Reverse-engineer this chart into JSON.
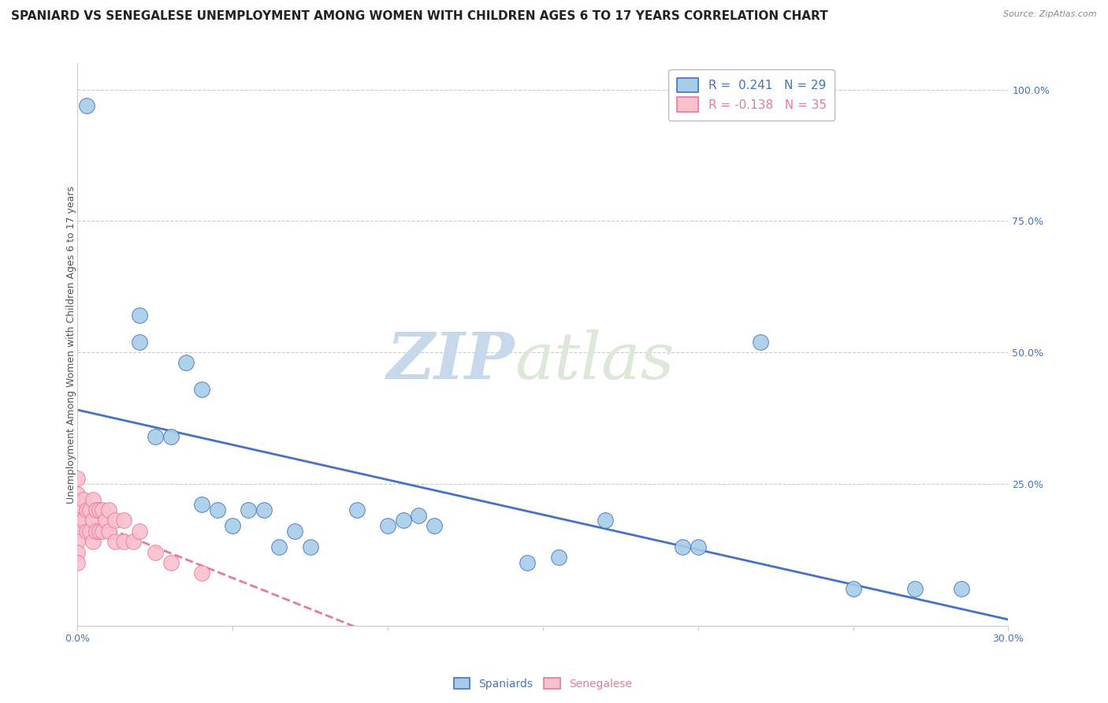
{
  "title": "SPANIARD VS SENEGALESE UNEMPLOYMENT AMONG WOMEN WITH CHILDREN AGES 6 TO 17 YEARS CORRELATION CHART",
  "source": "Source: ZipAtlas.com",
  "ylabel": "Unemployment Among Women with Children Ages 6 to 17 years",
  "xlim": [
    0.0,
    0.3
  ],
  "ylim": [
    -0.02,
    1.05
  ],
  "xticks": [
    0.0,
    0.05,
    0.1,
    0.15,
    0.2,
    0.25,
    0.3
  ],
  "xtick_labels": [
    "0.0%",
    "",
    "",
    "",
    "",
    "",
    "30.0%"
  ],
  "ytick_positions": [
    0.0,
    0.25,
    0.5,
    0.75,
    1.0
  ],
  "ytick_labels": [
    "",
    "25.0%",
    "50.0%",
    "75.0%",
    "100.0%"
  ],
  "spaniards_color": "#a8cce8",
  "senegalese_color": "#f9c0ce",
  "spaniards_line_color": "#4472c4",
  "senegalese_line_color": "#e8799a",
  "legend_R_spaniards": "R =  0.241",
  "legend_N_spaniards": "N = 29",
  "legend_R_senegalese": "R = -0.138",
  "legend_N_senegalese": "N = 35",
  "watermark_zip": "ZIP",
  "watermark_atlas": "atlas",
  "spaniards_x": [
    0.003,
    0.02,
    0.02,
    0.025,
    0.03,
    0.035,
    0.04,
    0.04,
    0.045,
    0.05,
    0.055,
    0.06,
    0.065,
    0.07,
    0.075,
    0.09,
    0.1,
    0.105,
    0.11,
    0.115,
    0.145,
    0.155,
    0.17,
    0.195,
    0.2,
    0.22,
    0.25,
    0.27,
    0.285
  ],
  "spaniards_y": [
    0.97,
    0.57,
    0.52,
    0.34,
    0.34,
    0.48,
    0.43,
    0.21,
    0.2,
    0.17,
    0.2,
    0.2,
    0.13,
    0.16,
    0.13,
    0.2,
    0.17,
    0.18,
    0.19,
    0.17,
    0.1,
    0.11,
    0.18,
    0.13,
    0.13,
    0.52,
    0.05,
    0.05,
    0.05
  ],
  "senegalese_x": [
    0.0,
    0.0,
    0.0,
    0.0,
    0.0,
    0.0,
    0.0,
    0.0,
    0.002,
    0.002,
    0.003,
    0.003,
    0.004,
    0.004,
    0.005,
    0.005,
    0.005,
    0.006,
    0.006,
    0.007,
    0.007,
    0.008,
    0.008,
    0.009,
    0.01,
    0.01,
    0.012,
    0.012,
    0.015,
    0.015,
    0.018,
    0.02,
    0.025,
    0.03,
    0.04
  ],
  "senegalese_y": [
    0.26,
    0.23,
    0.2,
    0.18,
    0.16,
    0.14,
    0.12,
    0.1,
    0.22,
    0.18,
    0.2,
    0.16,
    0.2,
    0.16,
    0.22,
    0.18,
    0.14,
    0.2,
    0.16,
    0.2,
    0.16,
    0.2,
    0.16,
    0.18,
    0.2,
    0.16,
    0.18,
    0.14,
    0.18,
    0.14,
    0.14,
    0.16,
    0.12,
    0.1,
    0.08
  ],
  "title_fontsize": 11,
  "axis_label_fontsize": 9,
  "tick_fontsize": 9,
  "background_color": "#ffffff",
  "grid_color": "#cccccc",
  "title_color": "#222222",
  "axis_label_color": "#555555",
  "tick_color": "#4472c4",
  "watermark_color": "#dce6f1"
}
